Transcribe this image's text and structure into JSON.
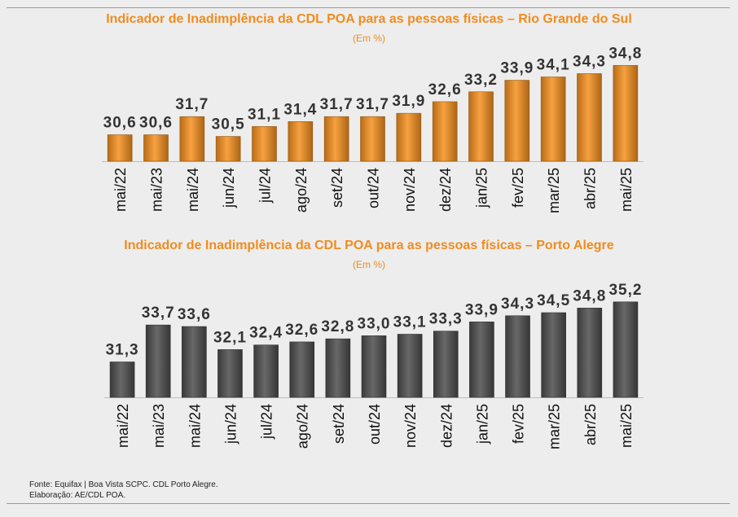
{
  "chart_data": [
    {
      "type": "bar",
      "title": "Indicador de Inadimplência da CDL POA para as pessoas físicas – Rio Grande do Sul",
      "subtitle": "(Em %)",
      "categories": [
        "mai/22",
        "mai/23",
        "mai/24",
        "jun/24",
        "jul/24",
        "ago/24",
        "set/24",
        "out/24",
        "nov/24",
        "dez/24",
        "jan/25",
        "fev/25",
        "mar/25",
        "abr/25",
        "mai/25"
      ],
      "values": [
        30.6,
        30.6,
        31.7,
        30.5,
        31.1,
        31.4,
        31.7,
        31.7,
        31.9,
        32.6,
        33.2,
        33.9,
        34.1,
        34.3,
        34.8
      ],
      "value_labels": [
        "30,6",
        "30,6",
        "31,7",
        "30,5",
        "31,1",
        "31,4",
        "31,7",
        "31,7",
        "31,9",
        "32,6",
        "33,2",
        "33,9",
        "34,1",
        "34,3",
        "34,8"
      ],
      "ylim": [
        29,
        35.8
      ],
      "color": "#f5901e",
      "grid": false
    },
    {
      "type": "bar",
      "title": "Indicador de Inadimplência da CDL POA para as pessoas físicas – Porto Alegre",
      "subtitle": "(Em %)",
      "categories": [
        "mai/22",
        "mai/23",
        "mai/24",
        "jun/24",
        "jul/24",
        "ago/24",
        "set/24",
        "out/24",
        "nov/24",
        "dez/24",
        "jan/25",
        "fev/25",
        "mar/25",
        "abr/25",
        "mai/25"
      ],
      "values": [
        31.3,
        33.7,
        33.6,
        32.1,
        32.4,
        32.6,
        32.8,
        33.0,
        33.1,
        33.3,
        33.9,
        34.3,
        34.5,
        34.8,
        35.2
      ],
      "value_labels": [
        "31,3",
        "33,7",
        "33,6",
        "32,1",
        "32,4",
        "32,6",
        "32,8",
        "33,0",
        "33,1",
        "33,3",
        "33,9",
        "34,3",
        "34,5",
        "34,8",
        "35,2"
      ],
      "ylim": [
        29,
        36.3
      ],
      "color": "#4d4d4d",
      "grid": false
    }
  ],
  "footer": {
    "source": "Fonte: Equifax | Boa Vista SCPC. CDL Porto Alegre.",
    "credit": "Elaboração: AE/CDL POA."
  }
}
